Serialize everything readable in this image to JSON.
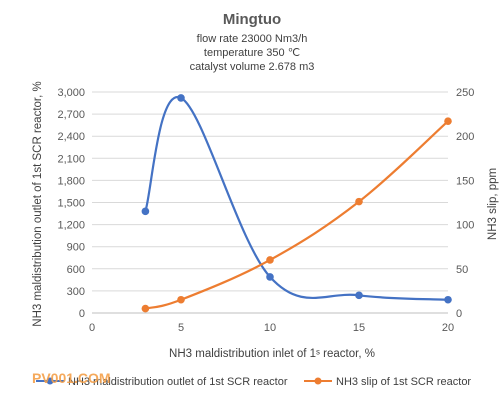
{
  "chart_data": {
    "type": "line",
    "title": "Mingtuo",
    "subtitle": [
      "flow rate 23000 Nm3/h",
      "temperature 350 ℃",
      "catalyst volume 2.678 m3"
    ],
    "xlabel": "NH3 maldistribution inlet of 1ˢ reactor, %",
    "ylabel_left": "NH3 maldistribution outlet of 1st SCR reactor, %",
    "ylabel_right": "NH3 slip, ppm",
    "xlim": [
      0,
      20
    ],
    "ylim_left": [
      0,
      3000
    ],
    "ylim_right": [
      0,
      250
    ],
    "x_ticks": [
      0,
      5,
      10,
      15,
      20
    ],
    "y_left_ticks": [
      "0",
      "300",
      "600",
      "900",
      "1,200",
      "1,500",
      "1,800",
      "2,100",
      "2,400",
      "2,700",
      "3,000"
    ],
    "y_right_ticks": [
      "0",
      "50",
      "100",
      "150",
      "200",
      "250"
    ],
    "grid": true,
    "legend_position": "bottom",
    "series": [
      {
        "name": "NH3 maldistribution outlet of 1st SCR reactor",
        "axis": "left",
        "color": "#4472c4",
        "x": [
          3,
          5,
          10,
          15,
          20
        ],
        "values": [
          1380,
          2920,
          490,
          240,
          180
        ]
      },
      {
        "name": "NH3 slip of 1st SCR reactor",
        "axis": "right",
        "color": "#ed7d31",
        "x": [
          3,
          5,
          10,
          15,
          20
        ],
        "values": [
          5,
          15,
          60,
          126,
          217
        ]
      }
    ]
  },
  "watermark": "PV001.COM"
}
